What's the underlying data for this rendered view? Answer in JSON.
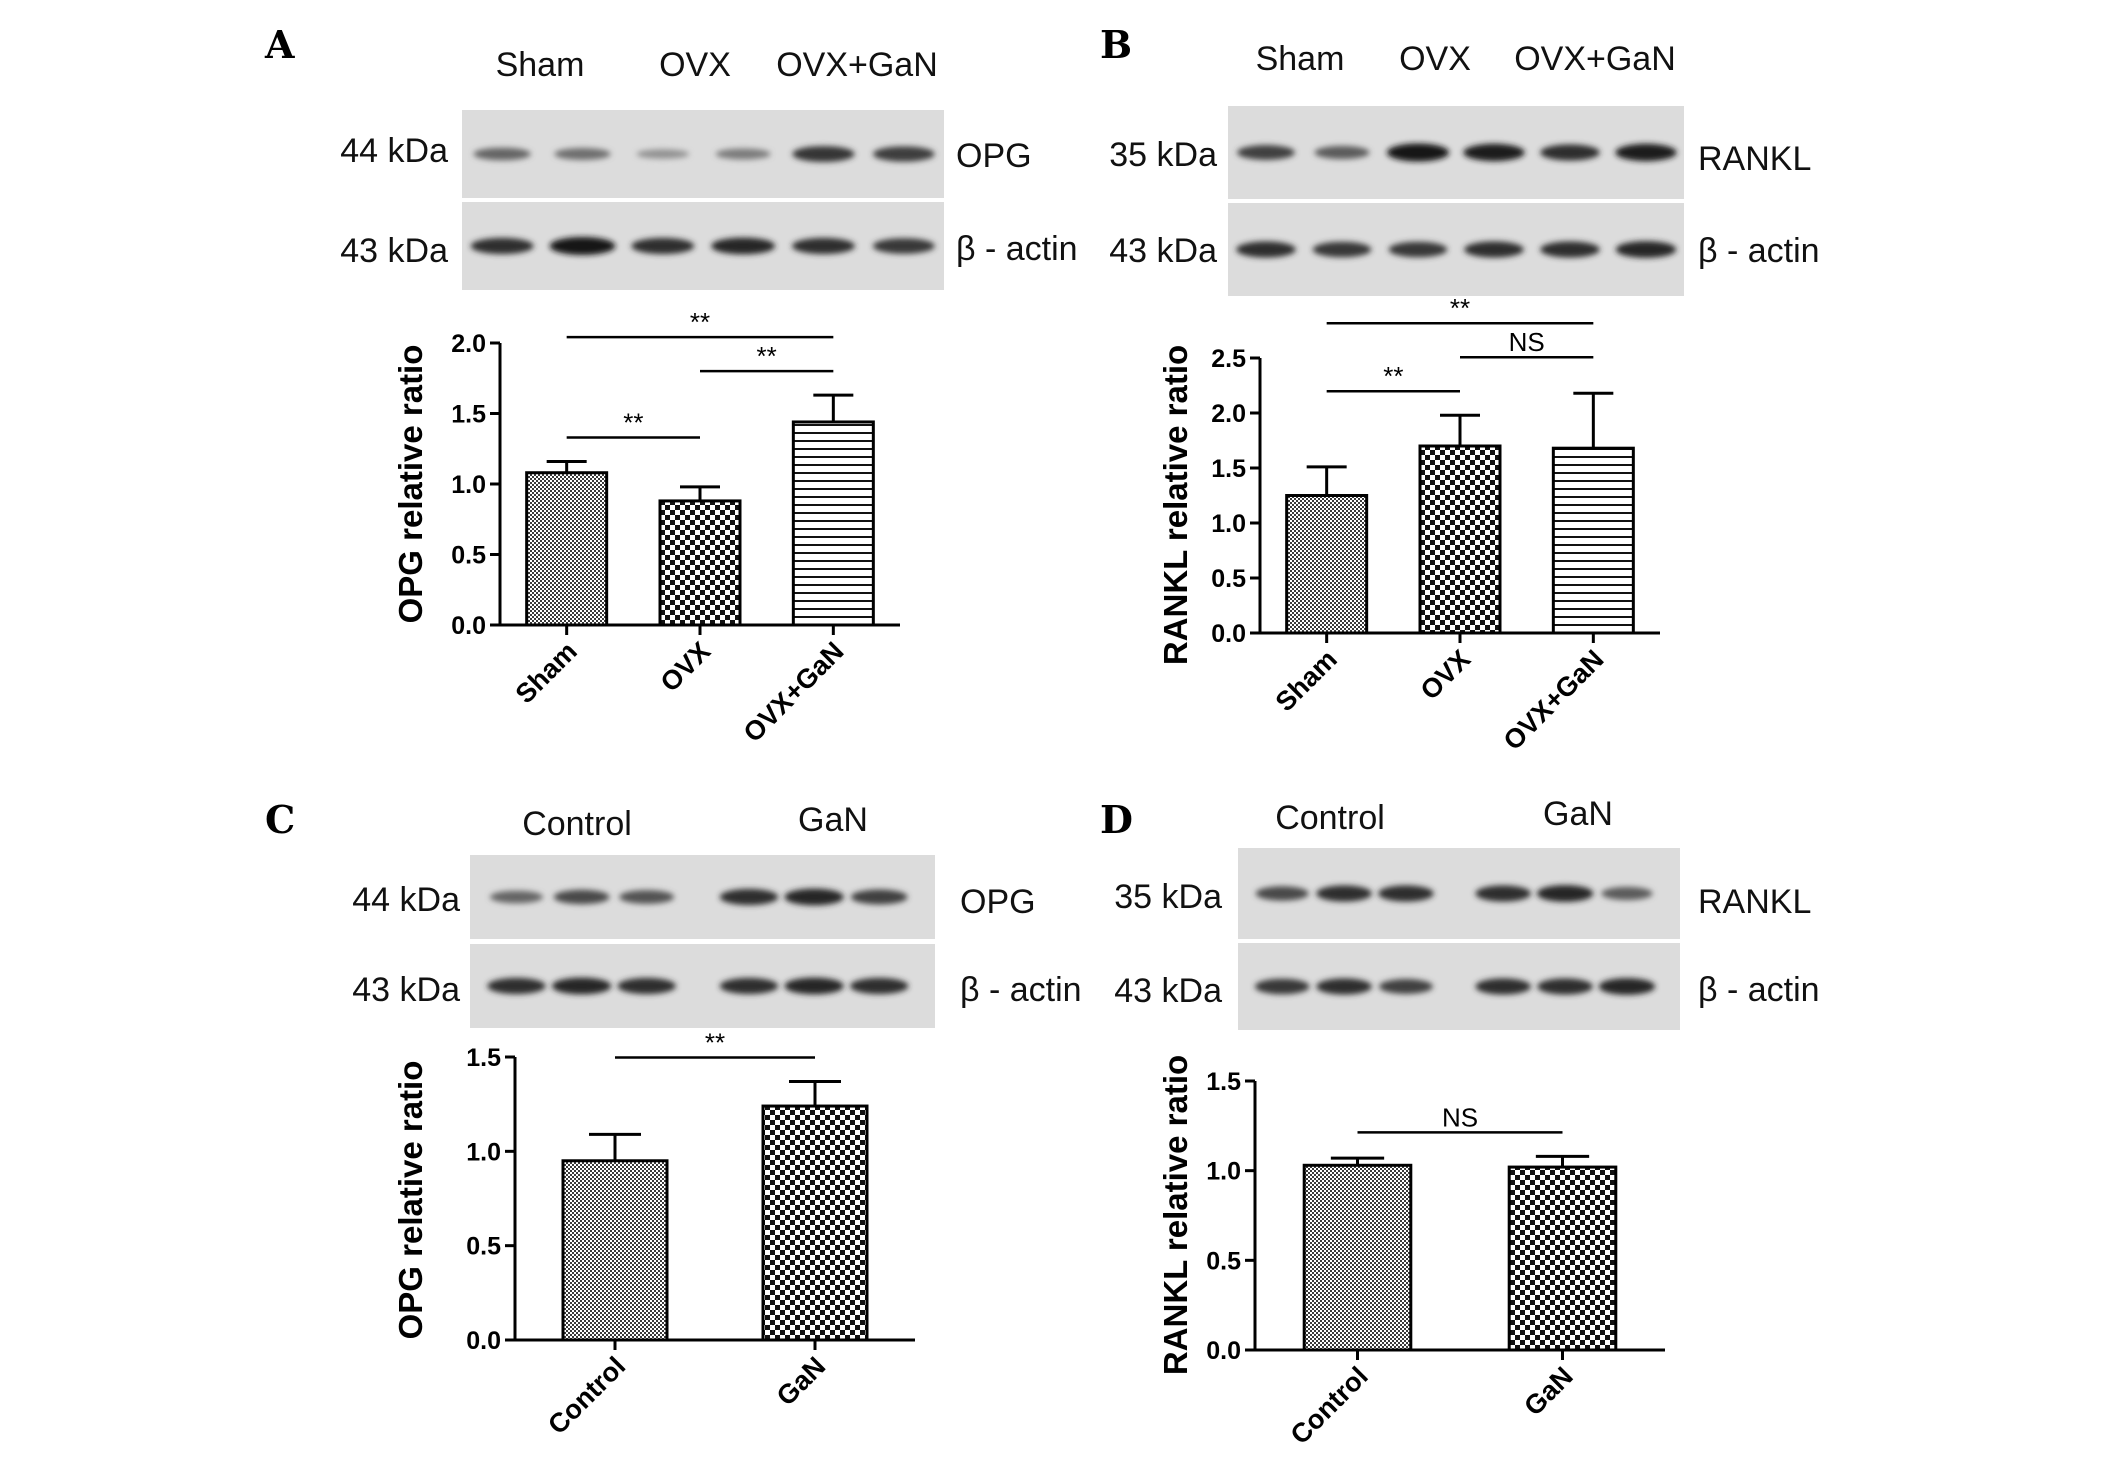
{
  "panels": [
    {
      "letter": "A",
      "blot": {
        "group_labels": [
          "Sham",
          "OVX",
          "OVX+GaN"
        ],
        "rows": [
          {
            "kda": "44 kDa",
            "protein": "OPG",
            "bands": [
              0.55,
              0.5,
              0.3,
              0.42,
              0.82,
              0.78
            ]
          },
          {
            "kda": "43 kDa",
            "protein": "β - actin",
            "bands": [
              0.85,
              1.0,
              0.85,
              0.9,
              0.85,
              0.8
            ]
          }
        ]
      },
      "chart": {
        "type": "bar",
        "categories": [
          "Sham",
          "OVX",
          "OVX+GaN"
        ],
        "values": [
          1.08,
          0.88,
          1.44
        ],
        "errors": [
          0.08,
          0.1,
          0.19
        ],
        "patterns": [
          "fine",
          "check",
          "hline"
        ],
        "ylabel": "OPG relative ratio",
        "ylim": [
          0,
          2.0
        ],
        "yticks": [
          "0.0",
          "0.5",
          "1.0",
          "1.5",
          "2.0"
        ],
        "significance": [
          {
            "from": 0,
            "to": 1,
            "label": "**"
          },
          {
            "from": 1,
            "to": 2,
            "label": "**"
          },
          {
            "from": 0,
            "to": 2,
            "label": "**"
          }
        ]
      }
    },
    {
      "letter": "B",
      "blot": {
        "group_labels": [
          "Sham",
          "OVX",
          "OVX+GaN"
        ],
        "rows": [
          {
            "kda": "35 kDa",
            "protein": "RANKL",
            "bands": [
              0.75,
              0.6,
              1.0,
              0.95,
              0.85,
              0.95
            ]
          },
          {
            "kda": "43 kDa",
            "protein": "β - actin",
            "bands": [
              0.85,
              0.8,
              0.8,
              0.85,
              0.85,
              0.9
            ]
          }
        ]
      },
      "chart": {
        "type": "bar",
        "categories": [
          "Sham",
          "OVX",
          "OVX+GaN"
        ],
        "values": [
          1.25,
          1.7,
          1.68
        ],
        "errors": [
          0.26,
          0.28,
          0.5
        ],
        "patterns": [
          "fine",
          "check",
          "hline"
        ],
        "ylabel": "RANKL relative ratio",
        "ylim": [
          0,
          2.5
        ],
        "yticks": [
          "0.0",
          "0.5",
          "1.0",
          "1.5",
          "2.0",
          "2.5"
        ],
        "significance": [
          {
            "from": 0,
            "to": 1,
            "label": "**"
          },
          {
            "from": 1,
            "to": 2,
            "label": "NS"
          },
          {
            "from": 0,
            "to": 2,
            "label": "**"
          }
        ]
      }
    },
    {
      "letter": "C",
      "blot": {
        "group_labels": [
          "Control",
          "GaN"
        ],
        "rows": [
          {
            "kda": "44 kDa",
            "protein": "OPG",
            "bands": [
              0.55,
              0.7,
              0.65,
              0.85,
              0.9,
              0.75
            ]
          },
          {
            "kda": "43 kDa",
            "protein": "β - actin",
            "bands": [
              0.85,
              0.9,
              0.85,
              0.85,
              0.9,
              0.85
            ]
          }
        ]
      },
      "chart": {
        "type": "bar",
        "categories": [
          "Control",
          "GaN"
        ],
        "values": [
          0.95,
          1.24
        ],
        "errors": [
          0.14,
          0.13
        ],
        "patterns": [
          "fine",
          "check"
        ],
        "ylabel": "OPG relative ratio",
        "ylim": [
          0,
          1.5
        ],
        "yticks": [
          "0.0",
          "0.5",
          "1.0",
          "1.5"
        ],
        "significance": [
          {
            "from": 0,
            "to": 1,
            "label": "**"
          }
        ]
      }
    },
    {
      "letter": "D",
      "blot": {
        "group_labels": [
          "Control",
          "GaN"
        ],
        "rows": [
          {
            "kda": "35 kDa",
            "protein": "RANKL",
            "bands": [
              0.7,
              0.85,
              0.85,
              0.85,
              0.9,
              0.6
            ]
          },
          {
            "kda": "43 kDa",
            "protein": "β - actin",
            "bands": [
              0.8,
              0.85,
              0.75,
              0.85,
              0.85,
              0.9
            ]
          }
        ]
      },
      "chart": {
        "type": "bar",
        "categories": [
          "Control",
          "GaN"
        ],
        "values": [
          1.03,
          1.02
        ],
        "errors": [
          0.04,
          0.06
        ],
        "patterns": [
          "fine",
          "check"
        ],
        "ylabel": "RANKL relative ratio",
        "ylim": [
          0,
          1.5
        ],
        "yticks": [
          "0.0",
          "0.5",
          "1.0",
          "1.5"
        ],
        "significance": [
          {
            "from": 0,
            "to": 1,
            "label": "NS"
          }
        ]
      }
    }
  ],
  "chart_data": [
    {
      "type": "bar",
      "panel": "A",
      "categories": [
        "Sham",
        "OVX",
        "OVX+GaN"
      ],
      "values": [
        1.08,
        0.88,
        1.44
      ],
      "errors": [
        0.08,
        0.1,
        0.19
      ],
      "ylabel": "OPG relative ratio",
      "ylim": [
        0,
        2.0
      ]
    },
    {
      "type": "bar",
      "panel": "B",
      "categories": [
        "Sham",
        "OVX",
        "OVX+GaN"
      ],
      "values": [
        1.25,
        1.7,
        1.68
      ],
      "errors": [
        0.26,
        0.28,
        0.5
      ],
      "ylabel": "RANKL relative ratio",
      "ylim": [
        0,
        2.5
      ]
    },
    {
      "type": "bar",
      "panel": "C",
      "categories": [
        "Control",
        "GaN"
      ],
      "values": [
        0.95,
        1.24
      ],
      "errors": [
        0.14,
        0.13
      ],
      "ylabel": "OPG relative ratio",
      "ylim": [
        0,
        1.5
      ]
    },
    {
      "type": "bar",
      "panel": "D",
      "categories": [
        "Control",
        "GaN"
      ],
      "values": [
        1.03,
        1.02
      ],
      "errors": [
        0.04,
        0.06
      ],
      "ylabel": "RANKL relative ratio",
      "ylim": [
        0,
        1.5
      ]
    }
  ]
}
